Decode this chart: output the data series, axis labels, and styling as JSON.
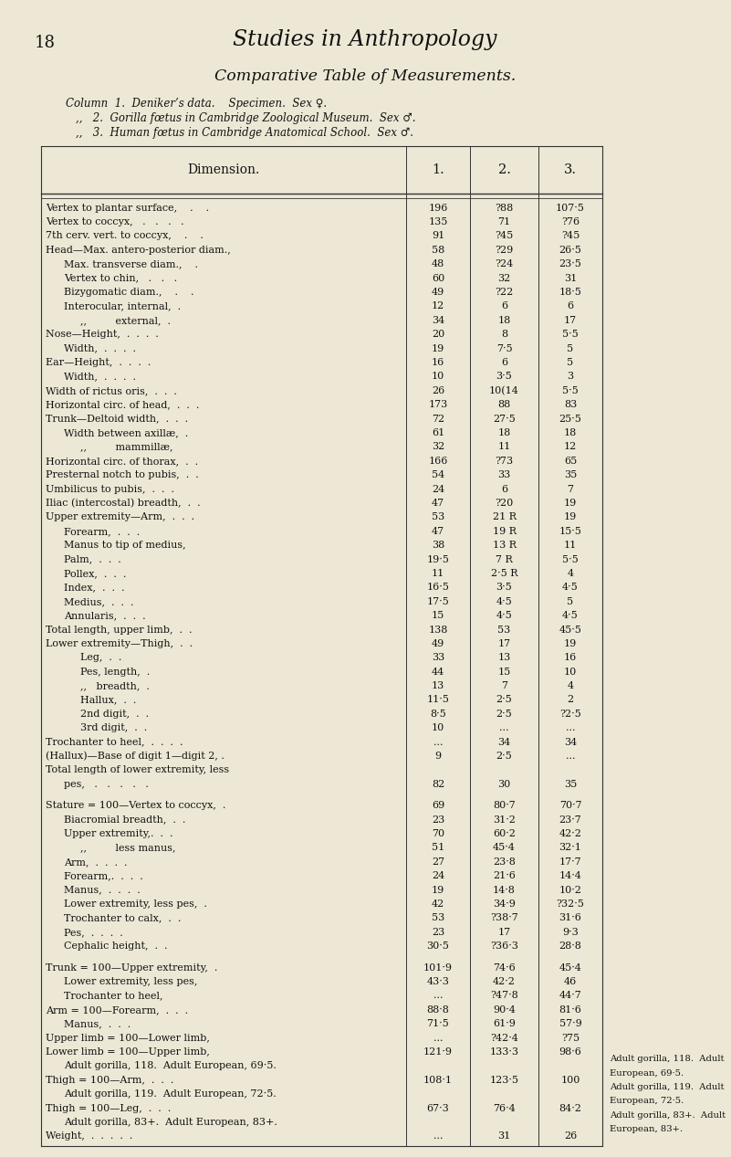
{
  "page_number": "18",
  "main_title": "Studies in Anthropology",
  "subtitle": "Comparative Table of Measurements.",
  "col_line1": "Column  1.  Deniker’s data.    Specimen.  Sex ♀.",
  "col_line2": "   ,,   2.  Gorilla fœtus in Cambridge Zoological Museum.  Sex ♂.",
  "col_line3": "   ,,   3.  Human fœtus in Cambridge Anatomical School.  Sex ♂.",
  "bg_color": "#ede8d5",
  "text_color": "#111111",
  "line_color": "#333333",
  "rows": [
    {
      "dim": "Vertex to plantar surface,    .    .",
      "indent": 0,
      "c1": "196",
      "c2": "?88",
      "c3": "107·5",
      "spacer": false
    },
    {
      "dim": "Vertex to coccyx,   .   .   .   .",
      "indent": 0,
      "c1": "135",
      "c2": "71",
      "c3": "?76",
      "spacer": false
    },
    {
      "dim": "7th cerv. vert. to coccyx,    .    .",
      "indent": 0,
      "c1": "91",
      "c2": "?45",
      "c3": "?45",
      "spacer": false
    },
    {
      "dim": "Head—Max. antero-posterior diam.,",
      "indent": 0,
      "c1": "58",
      "c2": "?29",
      "c3": "26·5",
      "spacer": false
    },
    {
      "dim": "Max. transverse diam.,    .",
      "indent": 1,
      "c1": "48",
      "c2": "?24",
      "c3": "23·5",
      "spacer": false
    },
    {
      "dim": "Vertex to chin,   .   .   .",
      "indent": 1,
      "c1": "60",
      "c2": "32",
      "c3": "31",
      "spacer": false
    },
    {
      "dim": "Bizygomatic diam.,    .    .",
      "indent": 1,
      "c1": "49",
      "c2": "?22",
      "c3": "18·5",
      "spacer": false
    },
    {
      "dim": "Interocular, internal,  .",
      "indent": 1,
      "c1": "12",
      "c2": "6",
      "c3": "6",
      "spacer": false
    },
    {
      "dim": ",,         external,  .",
      "indent": 2,
      "c1": "34",
      "c2": "18",
      "c3": "17",
      "spacer": false
    },
    {
      "dim": "Nose—Height,  .  .  .  .",
      "indent": 0,
      "c1": "20",
      "c2": "8",
      "c3": "5·5",
      "spacer": false
    },
    {
      "dim": "Width,  .  .  .  .",
      "indent": 1,
      "c1": "19",
      "c2": "7·5",
      "c3": "5",
      "spacer": false
    },
    {
      "dim": "Ear—Height,  .  .  .  .",
      "indent": 0,
      "c1": "16",
      "c2": "6",
      "c3": "5",
      "spacer": false
    },
    {
      "dim": "Width,  .  .  .  .",
      "indent": 1,
      "c1": "10",
      "c2": "3·5",
      "c3": "3",
      "spacer": false
    },
    {
      "dim": "Width of rictus oris,  .  .  .",
      "indent": 0,
      "c1": "26",
      "c2": "10(14",
      "c3": "5·5",
      "spacer": false
    },
    {
      "dim": "Horizontal circ. of head,  .  .  .",
      "indent": 0,
      "c1": "173",
      "c2": "88",
      "c3": "83",
      "spacer": false
    },
    {
      "dim": "Trunk—Deltoid width,  .  .  .",
      "indent": 0,
      "c1": "72",
      "c2": "27·5",
      "c3": "25·5",
      "spacer": false
    },
    {
      "dim": "Width between axillæ,  .",
      "indent": 1,
      "c1": "61",
      "c2": "18",
      "c3": "18",
      "spacer": false
    },
    {
      "dim": ",,         mammillæ,",
      "indent": 2,
      "c1": "32",
      "c2": "11",
      "c3": "12",
      "spacer": false
    },
    {
      "dim": "Horizontal circ. of thorax,  .  .",
      "indent": 0,
      "c1": "166",
      "c2": "?73",
      "c3": "65",
      "spacer": false
    },
    {
      "dim": "Presternal notch to pubis,  .  .",
      "indent": 0,
      "c1": "54",
      "c2": "33",
      "c3": "35",
      "spacer": false
    },
    {
      "dim": "Umbilicus to pubis,  .  .  .",
      "indent": 0,
      "c1": "24",
      "c2": "6",
      "c3": "7",
      "spacer": false
    },
    {
      "dim": "Iliac (intercostal) breadth,  .  .",
      "indent": 0,
      "c1": "47",
      "c2": "?20",
      "c3": "19",
      "spacer": false
    },
    {
      "dim": "Upper extremity—Arm,  .  .  .",
      "indent": 0,
      "c1": "53",
      "c2": "21 R",
      "c3": "19",
      "spacer": false
    },
    {
      "dim": "Forearm,  .  .  .",
      "indent": 1,
      "c1": "47",
      "c2": "19 R",
      "c3": "15·5",
      "spacer": false
    },
    {
      "dim": "Manus to tip of medius,",
      "indent": 1,
      "c1": "38",
      "c2": "13 R",
      "c3": "11",
      "spacer": false
    },
    {
      "dim": "Palm,  .  .  .",
      "indent": 1,
      "c1": "19·5",
      "c2": "7 R",
      "c3": "5·5",
      "spacer": false
    },
    {
      "dim": "Pollex,  .  .  .",
      "indent": 1,
      "c1": "11",
      "c2": "2·5 R",
      "c3": "4",
      "spacer": false
    },
    {
      "dim": "Index,  .  .  .",
      "indent": 1,
      "c1": "16·5",
      "c2": "3·5",
      "c3": "4·5",
      "spacer": false
    },
    {
      "dim": "Medius,  .  .  .",
      "indent": 1,
      "c1": "17·5",
      "c2": "4·5",
      "c3": "5",
      "spacer": false
    },
    {
      "dim": "Annularis,  .  .  .",
      "indent": 1,
      "c1": "15",
      "c2": "4·5",
      "c3": "4·5",
      "spacer": false
    },
    {
      "dim": "Total length, upper limb,  .  .",
      "indent": 0,
      "c1": "138",
      "c2": "53",
      "c3": "45·5",
      "spacer": false
    },
    {
      "dim": "Lower extremity—Thigh,  .  .",
      "indent": 0,
      "c1": "49",
      "c2": "17",
      "c3": "19",
      "spacer": false
    },
    {
      "dim": "Leg,  .  .",
      "indent": 2,
      "c1": "33",
      "c2": "13",
      "c3": "16",
      "spacer": false
    },
    {
      "dim": "Pes, length,  .",
      "indent": 2,
      "c1": "44",
      "c2": "15",
      "c3": "10",
      "spacer": false
    },
    {
      "dim": ",,   breadth,  .",
      "indent": 2,
      "c1": "13",
      "c2": "7",
      "c3": "4",
      "spacer": false
    },
    {
      "dim": "Hallux,  .  .",
      "indent": 2,
      "c1": "11·5",
      "c2": "2·5",
      "c3": "2",
      "spacer": false
    },
    {
      "dim": "2nd digit,  .  .",
      "indent": 2,
      "c1": "8·5",
      "c2": "2·5",
      "c3": "?2·5",
      "spacer": false
    },
    {
      "dim": "3rd digit,  .  .",
      "indent": 2,
      "c1": "10",
      "c2": "...",
      "c3": "...",
      "spacer": false
    },
    {
      "dim": "Trochanter to heel,  .  .  .  .",
      "indent": 0,
      "c1": "...",
      "c2": "34",
      "c3": "34",
      "spacer": false
    },
    {
      "dim": "(Hallux)—Base of digit 1—digit 2, .",
      "indent": 0,
      "c1": "9",
      "c2": "2·5",
      "c3": "...",
      "spacer": false
    },
    {
      "dim": "Total length of lower extremity, less",
      "indent": 0,
      "c1": "",
      "c2": "",
      "c3": "",
      "spacer": false
    },
    {
      "dim": "pes,   .   .   .   .   .",
      "indent": 1,
      "c1": "82",
      "c2": "30",
      "c3": "35",
      "spacer": false
    },
    {
      "dim": "",
      "indent": 0,
      "c1": "",
      "c2": "",
      "c3": "",
      "spacer": true
    },
    {
      "dim": "Stature = 100—Vertex to coccyx,  .",
      "indent": 0,
      "c1": "69",
      "c2": "80·7",
      "c3": "70·7",
      "spacer": false
    },
    {
      "dim": "Biacromial breadth,  .  .",
      "indent": 1,
      "c1": "23",
      "c2": "31·2",
      "c3": "23·7",
      "spacer": false
    },
    {
      "dim": "Upper extremity,.  .  .",
      "indent": 1,
      "c1": "70",
      "c2": "60·2",
      "c3": "42·2",
      "spacer": false
    },
    {
      "dim": ",,         less manus,",
      "indent": 2,
      "c1": "51",
      "c2": "45·4",
      "c3": "32·1",
      "spacer": false
    },
    {
      "dim": "Arm,  .  .  .  .",
      "indent": 1,
      "c1": "27",
      "c2": "23·8",
      "c3": "17·7",
      "spacer": false
    },
    {
      "dim": "Forearm,.  .  .  .",
      "indent": 1,
      "c1": "24",
      "c2": "21·6",
      "c3": "14·4",
      "spacer": false
    },
    {
      "dim": "Manus,  .  .  .  .",
      "indent": 1,
      "c1": "19",
      "c2": "14·8",
      "c3": "10·2",
      "spacer": false
    },
    {
      "dim": "Lower extremity, less pes,  .",
      "indent": 1,
      "c1": "42",
      "c2": "34·9",
      "c3": "?32·5",
      "spacer": false
    },
    {
      "dim": "Trochanter to calx,  .  .",
      "indent": 1,
      "c1": "53",
      "c2": "?38·7",
      "c3": "31·6",
      "spacer": false
    },
    {
      "dim": "Pes,  .  .  .  .",
      "indent": 1,
      "c1": "23",
      "c2": "17",
      "c3": "9·3",
      "spacer": false
    },
    {
      "dim": "Cephalic height,  .  .",
      "indent": 1,
      "c1": "30·5",
      "c2": "?36·3",
      "c3": "28·8",
      "spacer": false
    },
    {
      "dim": "",
      "indent": 0,
      "c1": "",
      "c2": "",
      "c3": "",
      "spacer": true
    },
    {
      "dim": "Trunk = 100—Upper extremity,  .",
      "indent": 0,
      "c1": "101·9",
      "c2": "74·6",
      "c3": "45·4",
      "spacer": false
    },
    {
      "dim": "Lower extremity, less pes,",
      "indent": 1,
      "c1": "43·3",
      "c2": "42·2",
      "c3": "46",
      "spacer": false
    },
    {
      "dim": "Trochanter to heel,",
      "indent": 1,
      "c1": "...",
      "c2": "?47·8",
      "c3": "44·7",
      "spacer": false
    },
    {
      "dim": "Arm = 100—Forearm,  .  .  .",
      "indent": 0,
      "c1": "88·8",
      "c2": "90·4",
      "c3": "81·6",
      "spacer": false
    },
    {
      "dim": "Manus,  .  .  .",
      "indent": 1,
      "c1": "71·5",
      "c2": "61·9",
      "c3": "57·9",
      "spacer": false
    },
    {
      "dim": "Upper limb = 100—Lower limb,",
      "indent": 0,
      "c1": "...",
      "c2": "?42·4",
      "c3": "?75",
      "spacer": false
    },
    {
      "dim": "Lower limb = 100—Upper limb,",
      "indent": 0,
      "c1": "121·9",
      "c2": "133·3",
      "c3": "98·6",
      "spacer": false
    },
    {
      "dim": "Adult gorilla, 118.  Adult European, 69·5.",
      "indent": 1,
      "c1": "",
      "c2": "",
      "c3": "",
      "spacer": false
    },
    {
      "dim": "Thigh = 100—Arm,  .  .  .",
      "indent": 0,
      "c1": "108·1",
      "c2": "123·5",
      "c3": "100",
      "spacer": false
    },
    {
      "dim": "Adult gorilla, 119.  Adult European, 72·5.",
      "indent": 1,
      "c1": "",
      "c2": "",
      "c3": "",
      "spacer": false
    },
    {
      "dim": "Thigh = 100—Leg,  .  .  .",
      "indent": 0,
      "c1": "67·3",
      "c2": "76·4",
      "c3": "84·2",
      "spacer": false
    },
    {
      "dim": "Adult gorilla, 83+.  Adult European, 83+.",
      "indent": 1,
      "c1": "",
      "c2": "",
      "c3": "",
      "spacer": false
    },
    {
      "dim": "Weight,  .  .  .  .  .",
      "indent": 0,
      "c1": "...",
      "c2": "31",
      "c3": "26",
      "spacer": false
    }
  ],
  "right_annotations": [
    {
      "row_idx": 59,
      "text": "Adult gorilla, 118.  Adult European, 69·5."
    },
    {
      "row_idx": 61,
      "text": "Adult gorilla, 119.  Adult"
    },
    {
      "row_idx": 61,
      "text2": "European, 72·5."
    },
    {
      "row_idx": 63,
      "text": "Adult gorilla, 83+.  Adult"
    },
    {
      "row_idx": 63,
      "text2": "European, 83+."
    }
  ]
}
